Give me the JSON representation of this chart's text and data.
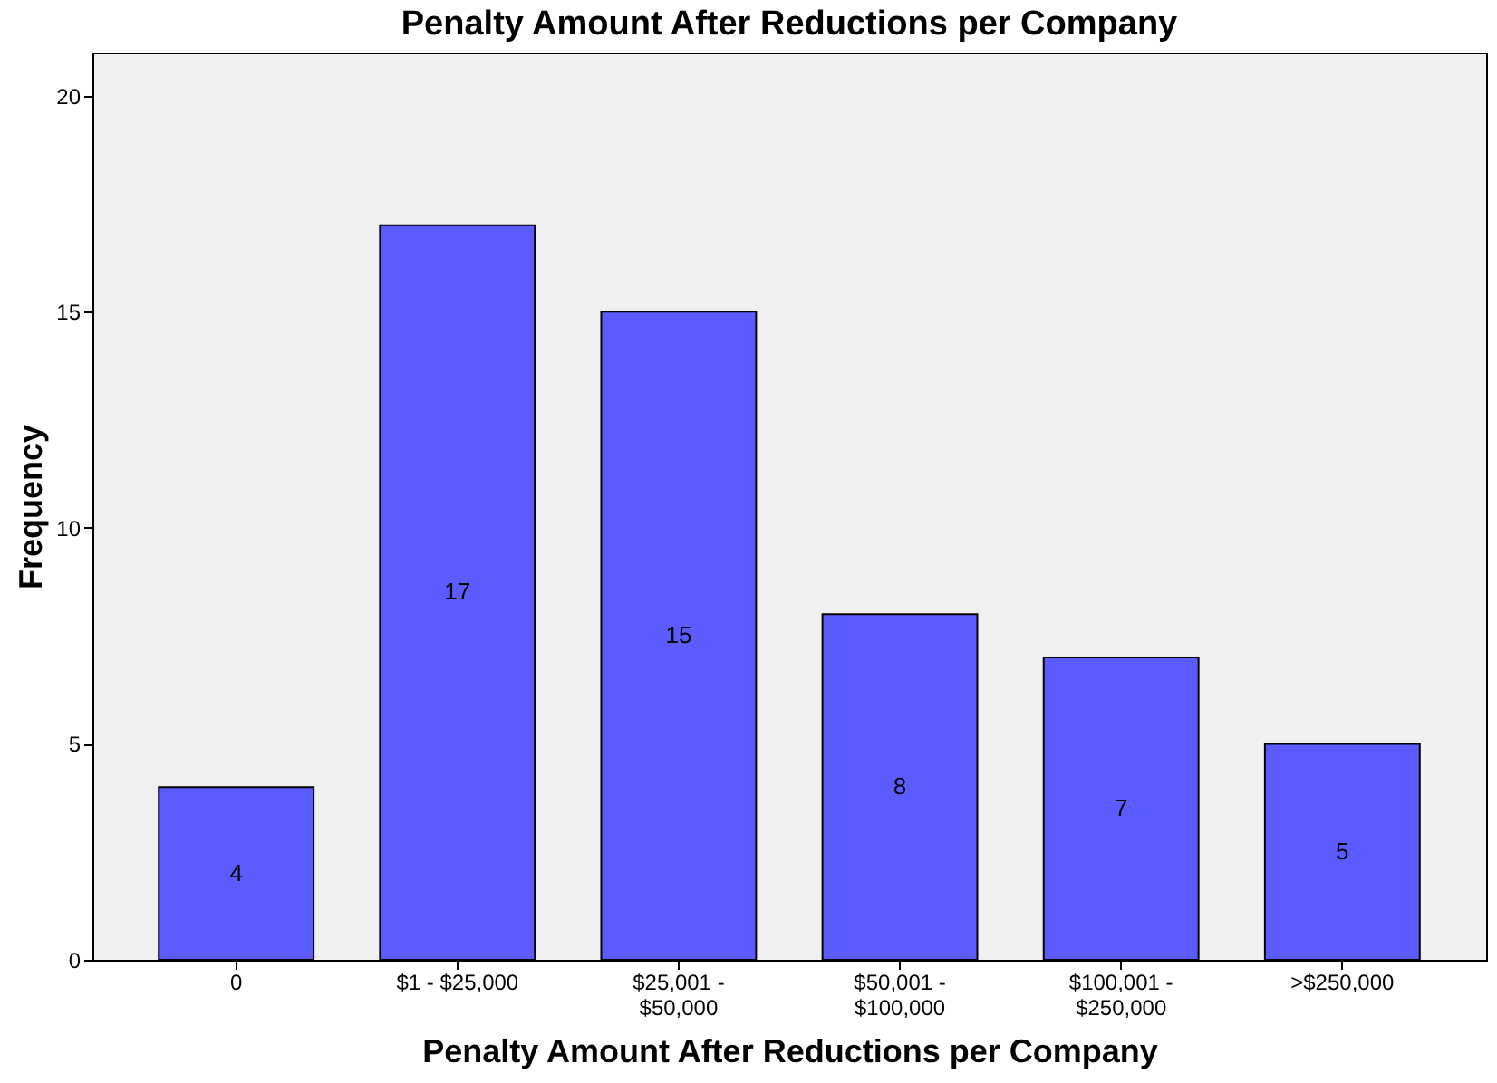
{
  "chart_data": {
    "type": "bar",
    "title": "Penalty Amount After Reductions per Company",
    "xlabel": "Penalty Amount After Reductions per Company",
    "ylabel": "Frequency",
    "categories": [
      "0",
      "$1 - $25,000",
      "$25,001 - $50,000",
      "$50,001 - $100,000",
      "$100,001 - $250,000",
      ">$250,000"
    ],
    "values": [
      4,
      17,
      15,
      8,
      7,
      5
    ],
    "color": "#5b5bff",
    "ylim": [
      0,
      21
    ],
    "yticks": [
      0,
      5,
      10,
      15,
      20
    ],
    "grid": false,
    "data_labels": true
  }
}
